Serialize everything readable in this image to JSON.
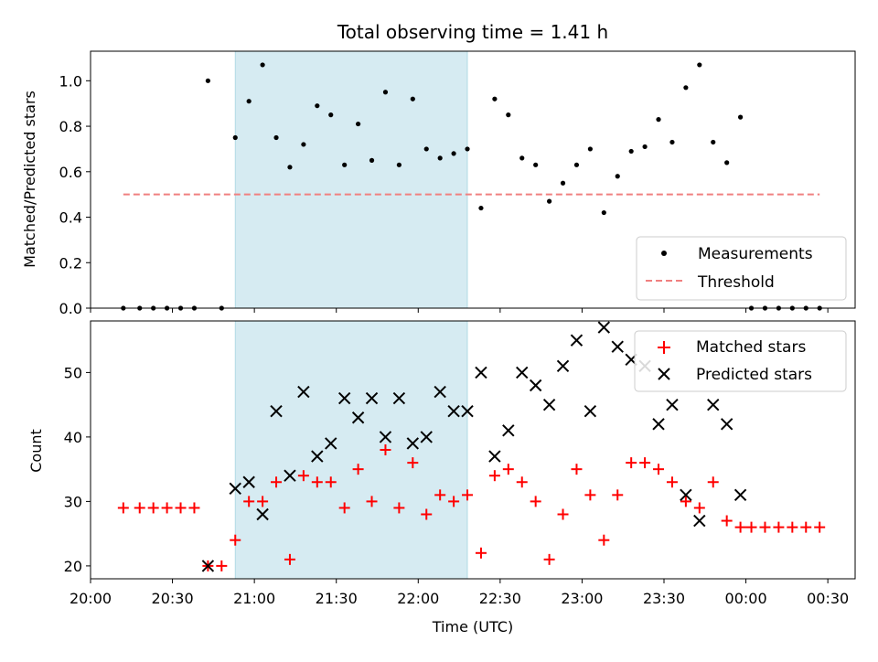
{
  "chart_data": [
    {
      "type": "scatter",
      "title": "Total observing time = 1.41 h",
      "xlabel": "",
      "ylabel": "Matched/Predicted stars",
      "xlim": [
        "20:00",
        "00:40"
      ],
      "ylim": [
        0,
        1.13
      ],
      "y_ticks": [
        "0.0",
        "0.2",
        "0.4",
        "0.6",
        "0.8",
        "1.0"
      ],
      "x_ticks_shown": false,
      "highlight_span": {
        "start": "20:53",
        "end": "22:18",
        "color": "#add8e6"
      },
      "legend_position": "lower-right",
      "series": [
        {
          "name": "Measurements",
          "marker": "dot",
          "color": "#000000",
          "points": [
            [
              "20:12",
              0.0
            ],
            [
              "20:18",
              0.0
            ],
            [
              "20:23",
              0.0
            ],
            [
              "20:28",
              0.0
            ],
            [
              "20:33",
              0.0
            ],
            [
              "20:38",
              0.0
            ],
            [
              "20:43",
              1.0
            ],
            [
              "20:48",
              0.0
            ],
            [
              "20:53",
              0.75
            ],
            [
              "20:58",
              0.91
            ],
            [
              "21:03",
              1.07
            ],
            [
              "21:08",
              0.75
            ],
            [
              "21:13",
              0.62
            ],
            [
              "21:18",
              0.72
            ],
            [
              "21:23",
              0.89
            ],
            [
              "21:28",
              0.85
            ],
            [
              "21:33",
              0.63
            ],
            [
              "21:38",
              0.81
            ],
            [
              "21:43",
              0.65
            ],
            [
              "21:48",
              0.95
            ],
            [
              "21:53",
              0.63
            ],
            [
              "21:58",
              0.92
            ],
            [
              "22:03",
              0.7
            ],
            [
              "22:08",
              0.66
            ],
            [
              "22:13",
              0.68
            ],
            [
              "22:18",
              0.7
            ],
            [
              "22:23",
              0.44
            ],
            [
              "22:28",
              0.92
            ],
            [
              "22:33",
              0.85
            ],
            [
              "22:38",
              0.66
            ],
            [
              "22:43",
              0.63
            ],
            [
              "22:48",
              0.47
            ],
            [
              "22:53",
              0.55
            ],
            [
              "22:58",
              0.63
            ],
            [
              "23:03",
              0.7
            ],
            [
              "23:08",
              0.42
            ],
            [
              "23:13",
              0.58
            ],
            [
              "23:18",
              0.69
            ],
            [
              "23:23",
              0.71
            ],
            [
              "23:28",
              0.83
            ],
            [
              "23:33",
              0.73
            ],
            [
              "23:38",
              0.97
            ],
            [
              "23:43",
              1.07
            ],
            [
              "23:48",
              0.73
            ],
            [
              "23:53",
              0.64
            ],
            [
              "23:58",
              0.84
            ],
            [
              "00:02",
              0.0
            ],
            [
              "00:07",
              0.0
            ],
            [
              "00:12",
              0.0
            ],
            [
              "00:17",
              0.0
            ],
            [
              "00:22",
              0.0
            ],
            [
              "00:27",
              0.0
            ]
          ]
        },
        {
          "name": "Threshold",
          "line": "dashed",
          "color": "#f08080",
          "points": [
            [
              "20:12",
              0.5
            ],
            [
              "00:27",
              0.5
            ]
          ]
        }
      ]
    },
    {
      "type": "scatter",
      "title": "",
      "xlabel": "Time (UTC)",
      "ylabel": "Count",
      "xlim": [
        "20:00",
        "00:40"
      ],
      "ylim": [
        18,
        58
      ],
      "y_ticks": [
        "20",
        "30",
        "40",
        "50"
      ],
      "x_ticks": [
        "20:00",
        "20:30",
        "21:00",
        "21:30",
        "22:00",
        "22:30",
        "23:00",
        "23:30",
        "00:00",
        "00:30"
      ],
      "highlight_span": {
        "start": "20:53",
        "end": "22:18",
        "color": "#add8e6"
      },
      "legend_position": "top-right",
      "series": [
        {
          "name": "Matched stars",
          "marker": "plus",
          "color": "#ff0000",
          "points": [
            [
              "20:12",
              29
            ],
            [
              "20:18",
              29
            ],
            [
              "20:23",
              29
            ],
            [
              "20:28",
              29
            ],
            [
              "20:33",
              29
            ],
            [
              "20:38",
              29
            ],
            [
              "20:43",
              20
            ],
            [
              "20:48",
              20
            ],
            [
              "20:53",
              24
            ],
            [
              "20:58",
              30
            ],
            [
              "21:03",
              30
            ],
            [
              "21:08",
              33
            ],
            [
              "21:13",
              21
            ],
            [
              "21:18",
              34
            ],
            [
              "21:23",
              33
            ],
            [
              "21:28",
              33
            ],
            [
              "21:33",
              29
            ],
            [
              "21:38",
              35
            ],
            [
              "21:43",
              30
            ],
            [
              "21:48",
              38
            ],
            [
              "21:53",
              29
            ],
            [
              "21:58",
              36
            ],
            [
              "22:03",
              28
            ],
            [
              "22:08",
              31
            ],
            [
              "22:13",
              30
            ],
            [
              "22:18",
              31
            ],
            [
              "22:23",
              22
            ],
            [
              "22:28",
              34
            ],
            [
              "22:33",
              35
            ],
            [
              "22:38",
              33
            ],
            [
              "22:43",
              30
            ],
            [
              "22:48",
              21
            ],
            [
              "22:53",
              28
            ],
            [
              "22:58",
              35
            ],
            [
              "23:03",
              31
            ],
            [
              "23:08",
              24
            ],
            [
              "23:13",
              31
            ],
            [
              "23:18",
              36
            ],
            [
              "23:23",
              36
            ],
            [
              "23:28",
              35
            ],
            [
              "23:33",
              33
            ],
            [
              "23:38",
              30
            ],
            [
              "23:43",
              29
            ],
            [
              "23:48",
              33
            ],
            [
              "23:53",
              27
            ],
            [
              "23:58",
              26
            ],
            [
              "00:02",
              26
            ],
            [
              "00:07",
              26
            ],
            [
              "00:12",
              26
            ],
            [
              "00:17",
              26
            ],
            [
              "00:22",
              26
            ],
            [
              "00:27",
              26
            ]
          ]
        },
        {
          "name": "Predicted stars",
          "marker": "x",
          "color": "#000000",
          "points": [
            [
              "20:43",
              20
            ],
            [
              "20:53",
              32
            ],
            [
              "20:58",
              33
            ],
            [
              "21:03",
              28
            ],
            [
              "21:08",
              44
            ],
            [
              "21:13",
              34
            ],
            [
              "21:18",
              47
            ],
            [
              "21:23",
              37
            ],
            [
              "21:28",
              39
            ],
            [
              "21:33",
              46
            ],
            [
              "21:38",
              43
            ],
            [
              "21:43",
              46
            ],
            [
              "21:48",
              40
            ],
            [
              "21:53",
              46
            ],
            [
              "21:58",
              39
            ],
            [
              "22:03",
              40
            ],
            [
              "22:08",
              47
            ],
            [
              "22:13",
              44
            ],
            [
              "22:18",
              44
            ],
            [
              "22:23",
              50
            ],
            [
              "22:28",
              37
            ],
            [
              "22:33",
              41
            ],
            [
              "22:38",
              50
            ],
            [
              "22:43",
              48
            ],
            [
              "22:48",
              45
            ],
            [
              "22:53",
              51
            ],
            [
              "22:58",
              55
            ],
            [
              "23:03",
              44
            ],
            [
              "23:08",
              57
            ],
            [
              "23:13",
              54
            ],
            [
              "23:18",
              52
            ],
            [
              "23:23",
              51
            ],
            [
              "23:28",
              42
            ],
            [
              "23:33",
              45
            ],
            [
              "23:38",
              31
            ],
            [
              "23:43",
              27
            ],
            [
              "23:48",
              45
            ],
            [
              "23:53",
              42
            ],
            [
              "23:58",
              31
            ]
          ]
        }
      ]
    }
  ]
}
